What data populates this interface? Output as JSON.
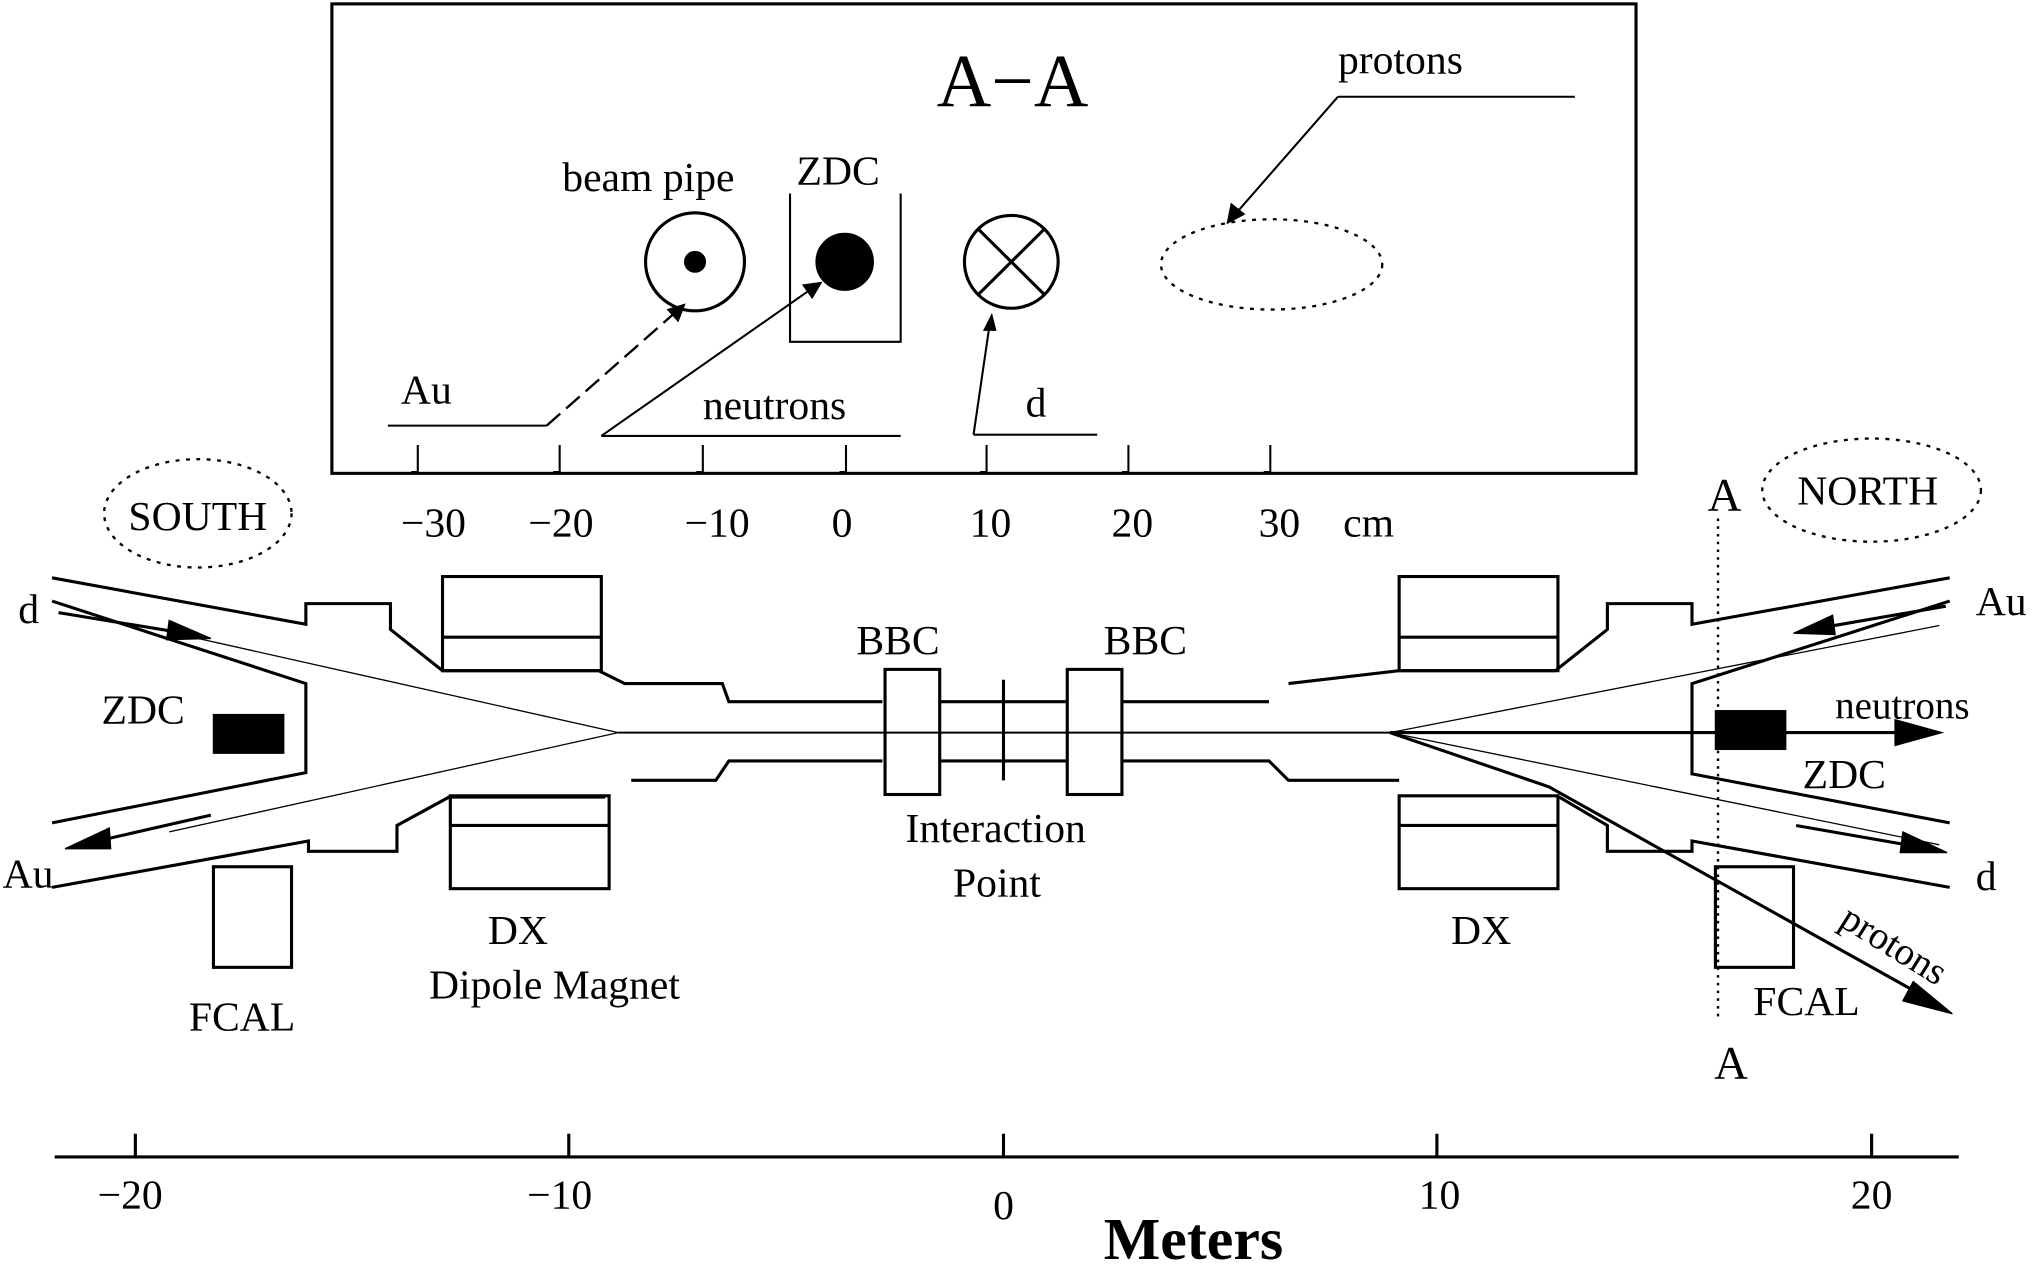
{
  "inset": {
    "title": "A−A",
    "labels": {
      "protons": "protons",
      "beam_pipe": "beam pipe",
      "zdc": "ZDC",
      "au": "Au",
      "neutrons": "neutrons",
      "d": "d"
    },
    "ticks": [
      "−30",
      "−20",
      "−10",
      "0",
      "10",
      "20",
      "30"
    ],
    "unit": "cm"
  },
  "regions": {
    "south": "SOUTH",
    "north": "NORTH"
  },
  "section_marker": "A",
  "beams": {
    "left_top": "d",
    "left_bottom": "Au",
    "right_top": "Au",
    "right_bottom": "d"
  },
  "components": {
    "zdc": "ZDC",
    "bbc": "BBC",
    "interaction_line1": "Interaction",
    "interaction_line2": "Point",
    "dx": "DX",
    "dipole_magnet": "Dipole Magnet",
    "fcal": "FCAL",
    "neutrons": "neutrons",
    "protons": "protons"
  },
  "axis": {
    "ticks": [
      "−20",
      "−10",
      "0",
      "10",
      "20"
    ],
    "title": "Meters"
  }
}
